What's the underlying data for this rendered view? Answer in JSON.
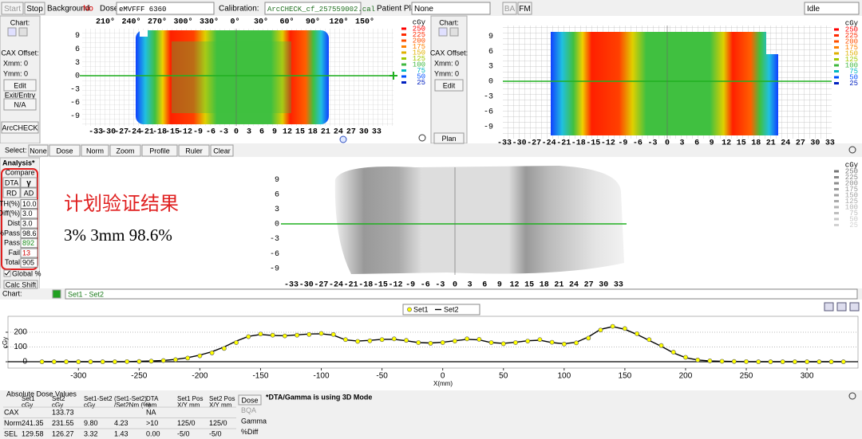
{
  "toolbar": {
    "start": "Start",
    "stop": "Stop",
    "background_label": "Background:",
    "background_value": "No",
    "dose_label": "Dose:",
    "dose_value": "eMVFFF 6360",
    "calibration_label": "Calibration:",
    "calibration_value": "ArcCHECK_cf_257559002.cal",
    "patient_plan_label": "Patient Plan:",
    "patient_plan_value": "None",
    "ba": "BA",
    "fm": "FM",
    "status": "Idle"
  },
  "left_panel": {
    "chart": "Chart:",
    "cax_offset": "CAX Offset:",
    "xmm": "Xmm: 0",
    "ymm": "Ymm: 0",
    "edit": "Edit",
    "exit_entry": "Exit/Entry",
    "na": "N/A",
    "arccheck": "ArcCHECK"
  },
  "right_panel": {
    "chart": "Chart:",
    "cax_offset": "CAX Offset:",
    "xmm": "Xmm: 0",
    "ymm": "Ymm: 0",
    "edit": "Edit",
    "plan": "Plan"
  },
  "dose_map_axes": {
    "angles": [
      "210°",
      "240°",
      "270°",
      "300°",
      "330°",
      "0°",
      "30°",
      "60°",
      "90°",
      "120°",
      "150°"
    ],
    "yticks": [
      9,
      6,
      3,
      0,
      -3,
      -6,
      -9
    ],
    "xticks": [
      -33,
      -30,
      -27,
      -24,
      -21,
      -18,
      -15,
      -12,
      -9,
      -6,
      -3,
      0,
      3,
      6,
      9,
      12,
      15,
      18,
      21,
      24,
      27,
      30,
      33
    ],
    "unit": "cGy",
    "legend_levels": [
      250,
      225,
      200,
      175,
      150,
      125,
      100,
      75,
      50,
      25
    ],
    "legend_colors": [
      "#ff0000",
      "#ff2a00",
      "#ff5000",
      "#ff8000",
      "#e0b000",
      "#a0c800",
      "#40b840",
      "#00b8c0",
      "#0050ff",
      "#0020c0"
    ],
    "gray_legend_colors": [
      "#777777",
      "#888888",
      "#8c8c8c",
      "#999999",
      "#a0a0a0",
      "#aaaaaa",
      "#b4b4b4",
      "#bebebe",
      "#c8c8c8",
      "#d2d2d2"
    ]
  },
  "select_bar": {
    "label": "Select:",
    "buttons": [
      "None",
      "Dose",
      "Norm",
      "Zoom",
      "Profile",
      "Ruler",
      "Clear"
    ]
  },
  "analysis": {
    "title": "Analysis*",
    "compare": "Compare",
    "dta": "DTA",
    "gamma": "γ",
    "rd": "RD",
    "ad": "AD",
    "fields": [
      {
        "label": "TH(%)",
        "value": "10.0"
      },
      {
        "label": "Diff(%)",
        "value": "3.0"
      },
      {
        "label": "Dist",
        "value": "3.0"
      },
      {
        "label": "%Pass",
        "value": "98.6"
      },
      {
        "label": "Pass",
        "value": "892"
      },
      {
        "label": "Fail",
        "value": "13"
      },
      {
        "label": "Total",
        "value": "905"
      }
    ],
    "global": "Global %",
    "calc_shift": "Calc Shift"
  },
  "annotation": {
    "title": "计划验证结果",
    "result": "3% 3mm 98.6%"
  },
  "chart_bar": {
    "label": "Chart:",
    "set": "Set1 - Set2"
  },
  "chart_data": {
    "type": "line",
    "x": [
      -330,
      -320,
      -310,
      -300,
      -290,
      -280,
      -270,
      -260,
      -250,
      -240,
      -230,
      -220,
      -210,
      -200,
      -190,
      -180,
      -170,
      -160,
      -150,
      -140,
      -130,
      -120,
      -110,
      -100,
      -90,
      -80,
      -70,
      -60,
      -50,
      -40,
      -30,
      -20,
      -10,
      0,
      10,
      20,
      30,
      40,
      50,
      60,
      70,
      80,
      90,
      100,
      110,
      120,
      130,
      140,
      150,
      160,
      170,
      180,
      190,
      200,
      210,
      220,
      230,
      240,
      250,
      260,
      270,
      280,
      290,
      300,
      310,
      320,
      330
    ],
    "series": [
      {
        "name": "Set1",
        "color": "#ffff00",
        "values": [
          0,
          0,
          0,
          0,
          0,
          0,
          0,
          1,
          2,
          4,
          8,
          14,
          25,
          40,
          60,
          90,
          130,
          170,
          188,
          180,
          175,
          180,
          185,
          192,
          185,
          150,
          138,
          142,
          150,
          155,
          145,
          130,
          125,
          130,
          140,
          155,
          152,
          130,
          122,
          130,
          140,
          150,
          132,
          120,
          128,
          160,
          215,
          240,
          225,
          190,
          150,
          110,
          65,
          30,
          12,
          6,
          3,
          2,
          1,
          0,
          0,
          0,
          0,
          0,
          0,
          0,
          0
        ]
      },
      {
        "name": "Set2",
        "color": "#000000",
        "values": [
          0,
          0,
          0,
          0,
          0,
          0,
          0,
          1,
          3,
          5,
          9,
          16,
          28,
          45,
          68,
          100,
          140,
          172,
          185,
          178,
          176,
          182,
          188,
          190,
          180,
          148,
          140,
          145,
          152,
          152,
          142,
          130,
          127,
          132,
          142,
          152,
          148,
          130,
          125,
          132,
          142,
          146,
          130,
          122,
          132,
          168,
          220,
          238,
          220,
          185,
          145,
          105,
          60,
          28,
          12,
          5,
          3,
          2,
          1,
          0,
          0,
          0,
          0,
          0,
          0,
          0,
          0
        ]
      }
    ],
    "xlim": [
      -358,
      342
    ],
    "ylim": [
      -43,
      308
    ],
    "xticks": [
      -300,
      -250,
      -200,
      -150,
      -100,
      -50,
      0,
      50,
      100,
      150,
      200,
      250,
      300
    ],
    "yticks": [
      0,
      100,
      200
    ],
    "xlabel": "X(mm)",
    "ylabel": "cGy",
    "grid": true
  },
  "table": {
    "title": "Absolute Dose Values",
    "headers": [
      [
        "Set1",
        "cGy"
      ],
      [
        "Set2",
        "cGy"
      ],
      [
        "Set1-Set2",
        "cGy"
      ],
      [
        "(Set1-Set2)",
        "/Set2Nm (%)"
      ],
      [
        "DTA",
        "mm"
      ],
      [
        "Set1 Pos",
        "X/Y mm"
      ],
      [
        "Set2 Pos",
        "X/Y mm"
      ]
    ],
    "rows": [
      [
        "CAX",
        null,
        "133.73",
        null,
        null,
        "NA",
        null,
        null
      ],
      [
        "Norm",
        "241.35",
        "231.55",
        "9.80",
        "4.23",
        ">10",
        "125/0",
        "125/0"
      ],
      [
        "SEL",
        "129.58",
        "126.27",
        "3.32",
        "1.43",
        "0.00",
        "-5/0",
        "-5/0"
      ]
    ]
  },
  "dose_options": [
    "Dose",
    "BQA",
    "Gamma",
    "%Diff"
  ],
  "note": "*DTA/Gamma is using 3D Mode"
}
